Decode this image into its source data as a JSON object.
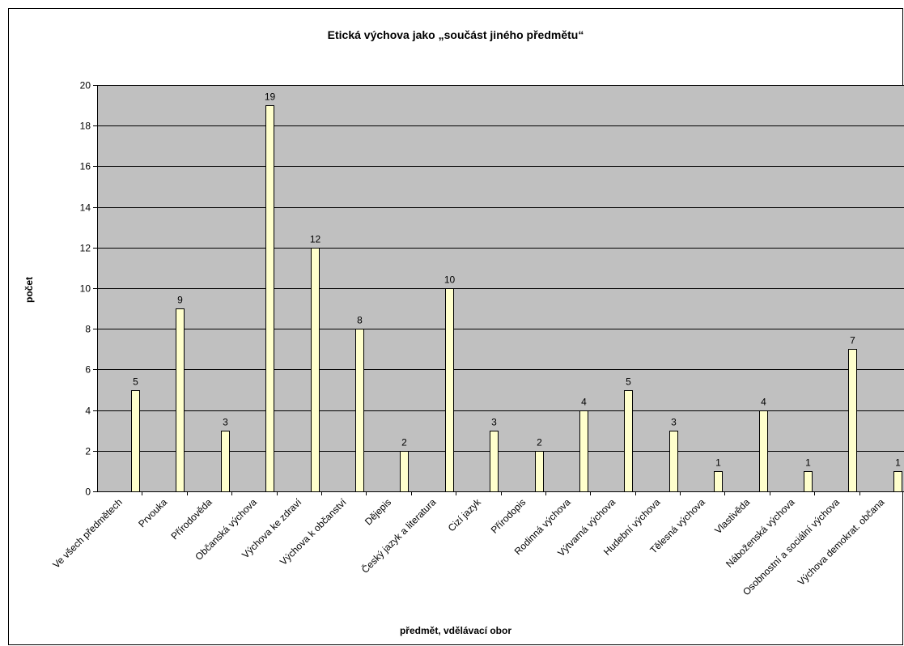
{
  "chart_data": {
    "type": "bar",
    "title": "Etická výchova jako „součást jiného předmětu“",
    "xlabel": "předmět, vdělávací obor",
    "ylabel": "počet",
    "ylim": [
      0,
      20
    ],
    "yticks": [
      0,
      2,
      4,
      6,
      8,
      10,
      12,
      14,
      16,
      18,
      20
    ],
    "grid": true,
    "legend": "none",
    "categories": [
      "Ve všech předmětech",
      "Prvouka",
      "Přírodověda",
      "Občanská výchova",
      "Výchova ke zdraví",
      "Výchova k občanství",
      "Dějepis",
      "Český jazyk a literatura",
      "Cizí jazyk",
      "Přírodopis",
      "Rodinná výchova",
      "Výtvarná výchova",
      "Hudební výchova",
      "Tělesná výchova",
      "Vlastivěda",
      "Náboženská výchova",
      "Osobnostní a sociální výchova",
      "Výchova demokrat. občana"
    ],
    "values": [
      5,
      9,
      3,
      19,
      12,
      8,
      2,
      10,
      3,
      2,
      4,
      5,
      3,
      1,
      4,
      1,
      7,
      1
    ],
    "colors": {
      "plot_background": "#c0c0c0",
      "bar_fill": "#ffffcc",
      "bar_stroke": "#000000"
    }
  }
}
